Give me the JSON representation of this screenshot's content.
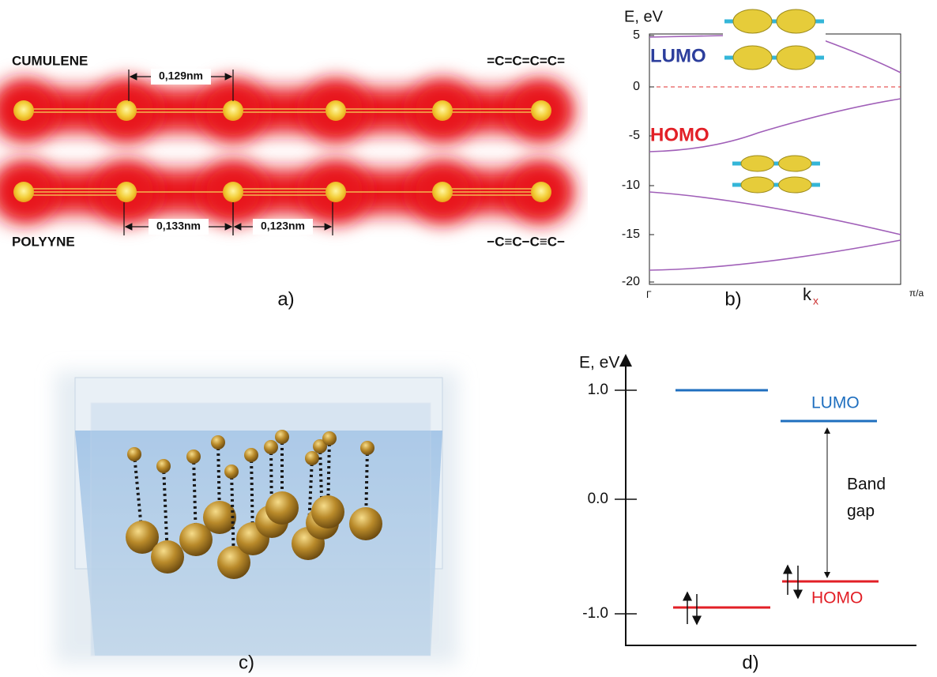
{
  "panel_a": {
    "top_label": "CUMULENE",
    "top_formula": "=C=C=C=C=",
    "bottom_label": "POLYYNE",
    "bottom_formula": "−C≡C−C≡C−",
    "bond_lengths": [
      "0,129nm",
      "0,133nm",
      "0,123nm"
    ],
    "caption": "a)"
  },
  "panel_b": {
    "y_axis_label": "E, eV",
    "yticks": [
      "5",
      "0",
      "-5",
      "-10",
      "-15",
      "-20"
    ],
    "lumo": "LUMO",
    "homo": "HOMO",
    "x_start": "Γ",
    "x_label": "k",
    "x_label_sub": "x",
    "x_end": "π/a",
    "caption": "b)"
  },
  "panel_c": {
    "caption": "c)"
  },
  "panel_d": {
    "y_axis_label": "E, eV",
    "yticks": [
      "1.0",
      "0.0",
      "-1.0"
    ],
    "lumo": "LUMO",
    "homo": "HOMO",
    "gap_line1": "Band",
    "gap_line2": "gap",
    "caption": "d)"
  }
}
